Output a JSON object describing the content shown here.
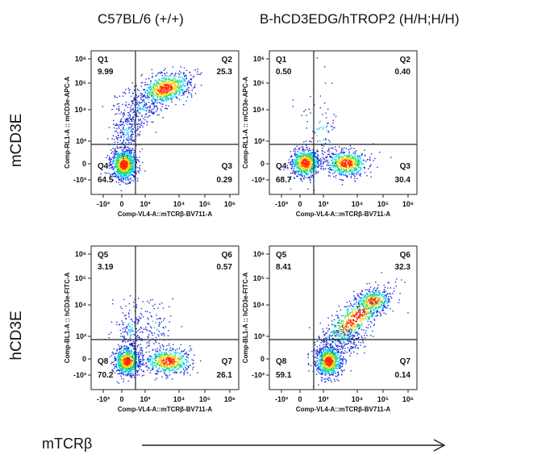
{
  "column_titles": [
    "C57BL/6 (+/+)",
    "B-hCD3EDG/hTROP2 (H/H;H/H)"
  ],
  "row_titles": [
    "mCD3E",
    "hCD3E"
  ],
  "footer": {
    "label": "mTCRβ"
  },
  "colors": {
    "density_low": "#1a2bd6",
    "density_mid": "#00c8ff",
    "density_mid2": "#20e060",
    "density_high2": "#ffd000",
    "density_high": "#ff2a00",
    "gate_line": "#222222"
  },
  "chart_data": [
    {
      "type": "scatter",
      "subtype": "flow-cytometry-density",
      "xlabel": "Comp-VL4-A::mTCRβ-BV711-A",
      "ylabel": "Comp-RL1-A :: mCD3e-APC-A",
      "x_ticks": [
        "-10³",
        "0",
        "10³",
        "10⁴",
        "10⁵",
        "10⁶"
      ],
      "y_ticks": [
        "10⁶",
        "10⁵",
        "10⁴",
        "10³",
        "0",
        "-10³"
      ],
      "quadrants": [
        {
          "name": "Q1",
          "value": "9.99"
        },
        {
          "name": "Q2",
          "value": "25.3"
        },
        {
          "name": "Q3",
          "value": "0.29"
        },
        {
          "name": "Q4",
          "value": "64.5"
        }
      ]
    },
    {
      "type": "scatter",
      "subtype": "flow-cytometry-density",
      "xlabel": "Comp-VL4-A::mTCRβ-BV711-A",
      "ylabel": "Comp-RL1-A :: mCD3e-APC-A",
      "x_ticks": [
        "-10³",
        "0",
        "10³",
        "10⁴",
        "10⁵",
        "10⁶"
      ],
      "y_ticks": [
        "10⁶",
        "10⁵",
        "10⁴",
        "10³",
        "0",
        "-10³"
      ],
      "quadrants": [
        {
          "name": "Q1",
          "value": "0.50"
        },
        {
          "name": "Q2",
          "value": "0.40"
        },
        {
          "name": "Q3",
          "value": "30.4"
        },
        {
          "name": "Q4",
          "value": "68.7"
        }
      ]
    },
    {
      "type": "scatter",
      "subtype": "flow-cytometry-density",
      "xlabel": "Comp-VL4-A::mTCRβ-BV711-A",
      "ylabel": "Comp-BL1-A :: hCD3e-FITC-A",
      "x_ticks": [
        "-10³",
        "0",
        "10³",
        "10⁴",
        "10⁵",
        "10⁶"
      ],
      "y_ticks": [
        "10⁶",
        "10⁵",
        "10⁴",
        "10³",
        "0",
        "-10³"
      ],
      "quadrants": [
        {
          "name": "Q5",
          "value": "3.19"
        },
        {
          "name": "Q6",
          "value": "0.57"
        },
        {
          "name": "Q7",
          "value": "26.1"
        },
        {
          "name": "Q8",
          "value": "70.2"
        }
      ]
    },
    {
      "type": "scatter",
      "subtype": "flow-cytometry-density",
      "xlabel": "Comp-VL4-A::mTCRβ-BV711-A",
      "ylabel": "Comp-BL1-A :: hCD3e-FITC-A",
      "x_ticks": [
        "-10³",
        "0",
        "10³",
        "10⁴",
        "10⁵",
        "10⁶"
      ],
      "y_ticks": [
        "10⁶",
        "10⁵",
        "10⁴",
        "10³",
        "0",
        "-10³"
      ],
      "quadrants": [
        {
          "name": "Q5",
          "value": "8.41"
        },
        {
          "name": "Q6",
          "value": "32.3"
        },
        {
          "name": "Q7",
          "value": "0.14"
        },
        {
          "name": "Q8",
          "value": "59.1"
        }
      ]
    }
  ]
}
